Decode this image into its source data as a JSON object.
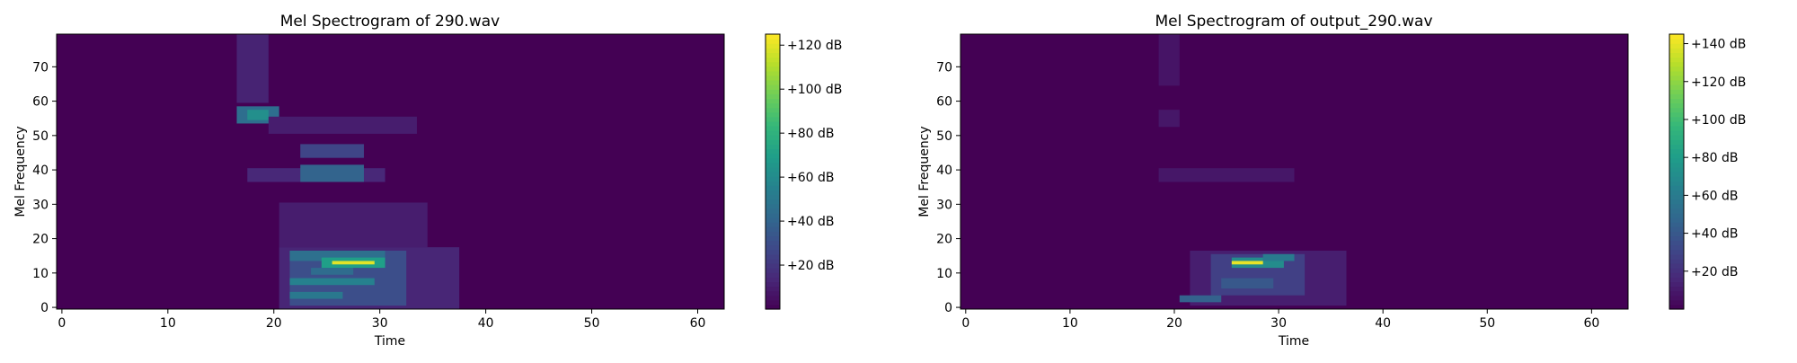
{
  "chart_data": [
    {
      "type": "heatmap",
      "title": "Mel Spectrogram of 290.wav",
      "xlabel": "Time",
      "ylabel": "Mel Frequency",
      "xlim": [
        -0.5,
        62.5
      ],
      "ylim": [
        -0.5,
        79.5
      ],
      "xticks": [
        0,
        10,
        20,
        30,
        40,
        50,
        60
      ],
      "yticks": [
        0,
        10,
        20,
        30,
        40,
        50,
        60,
        70
      ],
      "colormap": "viridis",
      "colorbar": {
        "min": 0,
        "max": 125,
        "ticks": [
          20,
          40,
          60,
          80,
          100,
          120
        ],
        "tick_labels": [
          "+20 dB",
          "+40 dB",
          "+60 dB",
          "+80 dB",
          "+100 dB",
          "+120 dB"
        ]
      },
      "regions": [
        {
          "t": [
            17,
            19
          ],
          "f": [
            60,
            79
          ],
          "value": 12
        },
        {
          "t": [
            17,
            20
          ],
          "f": [
            54,
            58
          ],
          "value": 45
        },
        {
          "t": [
            18,
            19
          ],
          "f": [
            55,
            57
          ],
          "value": 62
        },
        {
          "t": [
            20,
            33
          ],
          "f": [
            51,
            55
          ],
          "value": 10
        },
        {
          "t": [
            23,
            28
          ],
          "f": [
            44,
            47
          ],
          "value": 26
        },
        {
          "t": [
            18,
            30
          ],
          "f": [
            37,
            40
          ],
          "value": 14
        },
        {
          "t": [
            23,
            28
          ],
          "f": [
            37,
            41
          ],
          "value": 40
        },
        {
          "t": [
            21,
            34
          ],
          "f": [
            18,
            30
          ],
          "value": 10
        },
        {
          "t": [
            21,
            37
          ],
          "f": [
            0,
            17
          ],
          "value": 13
        },
        {
          "t": [
            22,
            32
          ],
          "f": [
            1,
            16
          ],
          "value": 30
        },
        {
          "t": [
            22,
            30
          ],
          "f": [
            14,
            16
          ],
          "value": 46
        },
        {
          "t": [
            22,
            29
          ],
          "f": [
            7,
            8
          ],
          "value": 55
        },
        {
          "t": [
            22,
            26
          ],
          "f": [
            3,
            4
          ],
          "value": 50
        },
        {
          "t": [
            24,
            27
          ],
          "f": [
            10,
            11
          ],
          "value": 44
        },
        {
          "t": [
            25,
            30
          ],
          "f": [
            12,
            14
          ],
          "value": 70
        },
        {
          "t": [
            26,
            29
          ],
          "f": [
            13,
            13
          ],
          "value": 120
        }
      ]
    },
    {
      "type": "heatmap",
      "title": "Mel Spectrogram of output_290.wav",
      "xlabel": "Time",
      "ylabel": "Mel Frequency",
      "xlim": [
        -0.5,
        63.5
      ],
      "ylim": [
        -0.5,
        79.5
      ],
      "xticks": [
        0,
        10,
        20,
        30,
        40,
        50,
        60
      ],
      "yticks": [
        0,
        10,
        20,
        30,
        40,
        50,
        60,
        70
      ],
      "colormap": "viridis",
      "colorbar": {
        "min": 0,
        "max": 145,
        "ticks": [
          20,
          40,
          60,
          80,
          100,
          120,
          140
        ],
        "tick_labels": [
          "+20 dB",
          "+40 dB",
          "+60 dB",
          "+80 dB",
          "+100 dB",
          "+120 dB",
          "+140 dB"
        ]
      },
      "regions": [
        {
          "t": [
            19,
            20
          ],
          "f": [
            65,
            79
          ],
          "value": 8
        },
        {
          "t": [
            19,
            20
          ],
          "f": [
            53,
            57
          ],
          "value": 9
        },
        {
          "t": [
            19,
            31
          ],
          "f": [
            37,
            40
          ],
          "value": 9
        },
        {
          "t": [
            22,
            36
          ],
          "f": [
            1,
            16
          ],
          "value": 12
        },
        {
          "t": [
            24,
            32
          ],
          "f": [
            4,
            15
          ],
          "value": 28
        },
        {
          "t": [
            21,
            24
          ],
          "f": [
            2,
            3
          ],
          "value": 45
        },
        {
          "t": [
            25,
            29
          ],
          "f": [
            6,
            8
          ],
          "value": 40
        },
        {
          "t": [
            26,
            30
          ],
          "f": [
            12,
            14
          ],
          "value": 70
        },
        {
          "t": [
            29,
            31
          ],
          "f": [
            14,
            15
          ],
          "value": 60
        },
        {
          "t": [
            26,
            28
          ],
          "f": [
            13,
            13
          ],
          "value": 140
        }
      ]
    }
  ]
}
